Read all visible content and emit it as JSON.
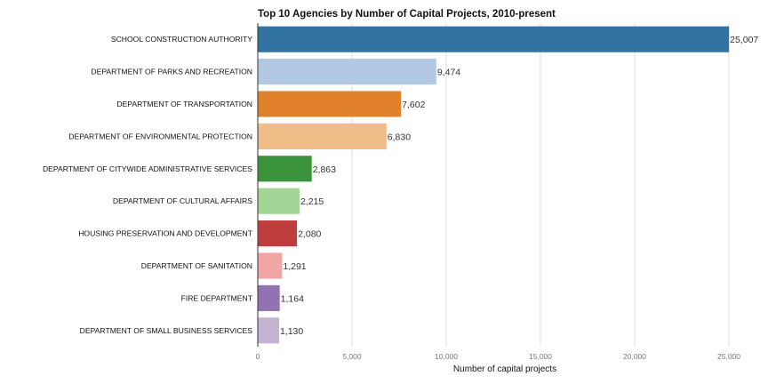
{
  "chart_data": {
    "type": "bar",
    "orientation": "horizontal",
    "title": "Top 10 Agencies by Number of Capital Projects, 2010-present",
    "xlabel": "Number of capital projects",
    "ylabel": "",
    "xlim": [
      0,
      25000
    ],
    "xticks": [
      0,
      5000,
      10000,
      15000,
      20000,
      25000
    ],
    "xtick_labels": [
      "0",
      "5,000",
      "10,000",
      "15,000",
      "20,000",
      "25,000"
    ],
    "grid": "vertical",
    "categories": [
      "SCHOOL CONSTRUCTION AUTHORITY",
      "DEPARTMENT OF PARKS AND RECREATION",
      "DEPARTMENT OF TRANSPORTATION",
      "DEPARTMENT OF ENVIRONMENTAL PROTECTION",
      "DEPARTMENT OF CITYWIDE ADMINISTRATIVE SERVICES",
      "DEPARTMENT OF CULTURAL AFFAIRS",
      "HOUSING PRESERVATION AND DEVELOPMENT",
      "DEPARTMENT OF SANITATION",
      "FIRE DEPARTMENT",
      "DEPARTMENT OF SMALL BUSINESS SERVICES"
    ],
    "values": [
      25007,
      9474,
      7602,
      6830,
      2863,
      2215,
      2080,
      1291,
      1164,
      1130
    ],
    "value_labels": [
      "25,007",
      "9,474",
      "7,602",
      "6,830",
      "2,863",
      "2,215",
      "2,080",
      "1,291",
      "1,164",
      "1,130"
    ],
    "colors": [
      "#3274a1",
      "#b3c9e3",
      "#e1812c",
      "#f0bc88",
      "#3a923a",
      "#a2d595",
      "#c03d3e",
      "#f2a6a4",
      "#9372b2",
      "#c5b3d4"
    ]
  }
}
